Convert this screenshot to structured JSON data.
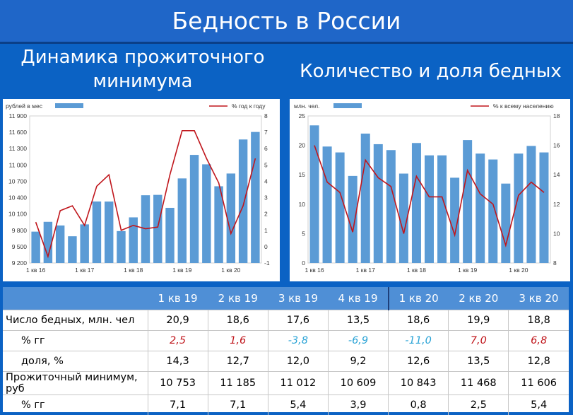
{
  "title": "Бедность в России",
  "left_subtitle": "Динамика прожиточного минимума",
  "right_subtitle": "Количество и доля бедных",
  "colors": {
    "bar": "#5b9bd5",
    "line": "#c0161c",
    "negative": "#c0161c",
    "positive_cyan": "#2aa3d6"
  },
  "chart_data": [
    {
      "type": "bar",
      "legend": {
        "bar_label": "рублей в мес",
        "line_label": "%  год к году"
      },
      "categories": [
        "1 кв 16",
        "2 кв 16",
        "3 кв 16",
        "4 кв 16",
        "1 кв 17",
        "2 кв 17",
        "3 кв 17",
        "4 кв 17",
        "1 кв 18",
        "2 кв 18",
        "3 кв 18",
        "4 кв 18",
        "1 кв 19",
        "2 кв 19",
        "3 кв 19",
        "4 кв 19",
        "1 кв 20",
        "2 кв 20",
        "3 кв 20"
      ],
      "x_tick_labels": [
        "1 кв 16",
        "1 кв 17",
        "1 кв 18",
        "1 кв 19",
        "1 кв 20"
      ],
      "series": [
        {
          "name": "рублей в мес",
          "type": "bar",
          "axis": "left",
          "values": [
            9776,
            9956,
            9889,
            9691,
            9909,
            10329,
            10328,
            9786,
            10038,
            10444,
            10451,
            10213,
            10753,
            11185,
            11012,
            10609,
            10843,
            11468,
            11606
          ]
        },
        {
          "name": "%  год к году",
          "type": "line",
          "axis": "right",
          "values": [
            1.5,
            -0.6,
            2.2,
            2.5,
            1.3,
            3.7,
            4.4,
            1.0,
            1.3,
            1.1,
            1.2,
            4.4,
            7.1,
            7.1,
            5.4,
            3.9,
            0.8,
            2.5,
            5.4
          ]
        }
      ],
      "y_left": {
        "min": 9200,
        "max": 11900,
        "ticks": [
          "9 200",
          "9 500",
          "9 800",
          "10 100",
          "10 400",
          "10 700",
          "11 000",
          "11 300",
          "11 600",
          "11 900"
        ]
      },
      "y_right": {
        "min": -1,
        "max": 8,
        "ticks": [
          "-1",
          "0",
          "1",
          "2",
          "3",
          "4",
          "5",
          "6",
          "7",
          "8"
        ]
      },
      "grid": false,
      "legend_placement": "top"
    },
    {
      "type": "bar",
      "legend": {
        "bar_label": "млн. чел.",
        "line_label": "%  к всему населению"
      },
      "categories": [
        "1 кв 16",
        "2 кв 16",
        "3 кв 16",
        "4 кв 16",
        "1 кв 17",
        "2 кв 17",
        "3 кв 17",
        "4 кв 17",
        "1 кв 18",
        "2 кв 18",
        "3 кв 18",
        "4 кв 18",
        "1 кв 19",
        "2 кв 19",
        "3 кв 19",
        "4 кв 19",
        "1 кв 20",
        "2 кв 20",
        "3 кв 20"
      ],
      "x_tick_labels": [
        "1 кв 16",
        "1 кв 17",
        "1 кв 18",
        "1 кв 19",
        "1 кв 20"
      ],
      "series": [
        {
          "name": "млн. чел.",
          "type": "bar",
          "axis": "left",
          "values": [
            23.4,
            19.8,
            18.8,
            14.8,
            22.0,
            20.2,
            19.2,
            15.2,
            20.4,
            18.3,
            18.3,
            14.5,
            20.9,
            18.6,
            17.6,
            13.5,
            18.6,
            19.9,
            18.8
          ]
        },
        {
          "name": "%  к всему населению",
          "type": "line",
          "axis": "right",
          "values": [
            16.0,
            13.5,
            12.8,
            10.1,
            15.0,
            13.8,
            13.2,
            10.0,
            13.9,
            12.5,
            12.5,
            9.9,
            14.3,
            12.7,
            12.0,
            9.2,
            12.6,
            13.5,
            12.8
          ]
        }
      ],
      "y_left": {
        "min": 0,
        "max": 25,
        "ticks": [
          "0",
          "5",
          "10",
          "15",
          "20",
          "25"
        ]
      },
      "y_right": {
        "min": 8,
        "max": 18,
        "ticks": [
          "8",
          "10",
          "12",
          "14",
          "16",
          "18"
        ]
      },
      "grid": false,
      "legend_placement": "top"
    }
  ],
  "table": {
    "headers": [
      "1 кв 19",
      "2 кв 19",
      "3 кв 19",
      "4 кв 19",
      "1 кв 20",
      "2 кв 20",
      "3 кв 20"
    ],
    "rows": [
      {
        "label": "Число бедных, млн. чел",
        "values": [
          "20,9",
          "18,6",
          "17,6",
          "13,5",
          "18,6",
          "19,9",
          "18,8"
        ]
      },
      {
        "label": "% гг",
        "values": [
          "2,5",
          "1,6",
          "-3,8",
          "-6,9",
          "-11,0",
          "7,0",
          "6,8"
        ],
        "value_colors": [
          "red",
          "red",
          "cyan",
          "cyan",
          "cyan",
          "red",
          "red"
        ]
      },
      {
        "label": "доля, %",
        "values": [
          "14,3",
          "12,7",
          "12,0",
          "9,2",
          "12,6",
          "13,5",
          "12,8"
        ]
      },
      {
        "label": "Прожиточный минимум, руб",
        "values": [
          "10 753",
          "11 185",
          "11 012",
          "10 609",
          "10 843",
          "11 468",
          "11 606"
        ]
      },
      {
        "label": "% гг",
        "values": [
          "7,1",
          "7,1",
          "5,4",
          "3,9",
          "0,8",
          "2,5",
          "5,4"
        ]
      }
    ]
  }
}
